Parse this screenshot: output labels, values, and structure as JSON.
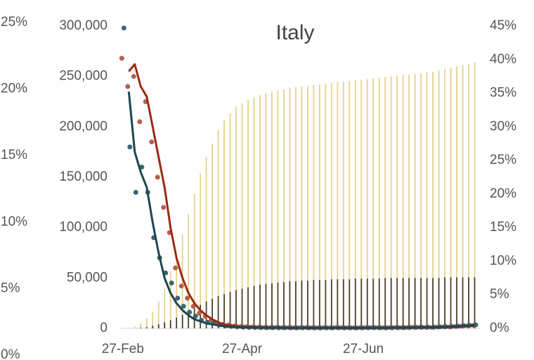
{
  "chart_data": {
    "type": "combo",
    "title": "Italy",
    "x": [
      0,
      3,
      6,
      9,
      12,
      15,
      18,
      21,
      24,
      27,
      30,
      33,
      36,
      39,
      42,
      45,
      48,
      51,
      54,
      57,
      60,
      63,
      66,
      69,
      72,
      75,
      78,
      81,
      84,
      87,
      90,
      93,
      96,
      99,
      102,
      105,
      108,
      111,
      114,
      117,
      120,
      123,
      126,
      129,
      132,
      135,
      138,
      141,
      144,
      147,
      150,
      153,
      156,
      159,
      162,
      165,
      168,
      171,
      174,
      177
    ],
    "xlim": [
      -1,
      180
    ],
    "xticks": [
      {
        "value": 0,
        "label": "27-Feb"
      },
      {
        "value": 60,
        "label": "27-Apr"
      },
      {
        "value": 121,
        "label": "27-Jun"
      }
    ],
    "ylim": [
      0,
      300000
    ],
    "yticks": [
      0,
      {
        "value": 50000,
        "label": "50,000"
      },
      {
        "value": 100000,
        "label": "100,000"
      },
      {
        "value": 150000,
        "label": "150,000"
      },
      {
        "value": 200000,
        "label": "200,000"
      },
      {
        "value": 250000,
        "label": "250,000"
      },
      {
        "value": 300000,
        "label": "300,000"
      }
    ],
    "y2lim": [
      0,
      45
    ],
    "y2ticks": [
      {
        "value": 0,
        "label": "0%"
      },
      {
        "value": 5,
        "label": "5%"
      },
      {
        "value": 10,
        "label": "10%"
      },
      {
        "value": 15,
        "label": "15%"
      },
      {
        "value": 20,
        "label": "20%"
      },
      {
        "value": 25,
        "label": "25%"
      },
      {
        "value": 30,
        "label": "30%"
      },
      {
        "value": 35,
        "label": "35%"
      },
      {
        "value": 40,
        "label": "40%"
      },
      {
        "value": 45,
        "label": "45%"
      }
    ],
    "y3lim": [
      0,
      25
    ],
    "y3ticks": [
      {
        "value": 0,
        "label": "0%"
      },
      {
        "value": 5,
        "label": "5%"
      },
      {
        "value": 10,
        "label": "10%"
      },
      {
        "value": 15,
        "label": "15%"
      },
      {
        "value": 20,
        "label": "20%"
      },
      {
        "value": 25,
        "label": "25%"
      }
    ],
    "series": [
      {
        "kind": "bar",
        "axis": "y2",
        "color": "#e6d28a",
        "values": [
          0,
          0.1,
          0.3,
          0.8,
          1.5,
          2.5,
          4,
          6,
          8.5,
          11,
          14,
          17,
          20,
          23,
          25.5,
          27.5,
          29.5,
          31,
          32,
          33,
          33.5,
          34,
          34.4,
          34.7,
          35,
          35.2,
          35.4,
          35.6,
          35.8,
          35.9,
          36,
          36.1,
          36.2,
          36.3,
          36.4,
          36.5,
          36.6,
          36.7,
          36.8,
          36.9,
          37,
          37.1,
          37.2,
          37.3,
          37.4,
          37.5,
          37.6,
          37.7,
          37.8,
          37.9,
          38,
          38.1,
          38.2,
          38.4,
          38.6,
          38.8,
          39,
          39.2,
          39.4,
          39.6
        ]
      },
      {
        "kind": "bar",
        "axis": "y2",
        "color": "#4a4330",
        "values": [
          0,
          0,
          0,
          0.1,
          0.2,
          0.4,
          0.6,
          0.9,
          1.2,
          1.6,
          2,
          2.5,
          3,
          3.5,
          4,
          4.4,
          4.8,
          5.1,
          5.4,
          5.7,
          5.9,
          6.1,
          6.3,
          6.5,
          6.6,
          6.7,
          6.8,
          6.9,
          7,
          7,
          7.1,
          7.1,
          7.2,
          7.2,
          7.2,
          7.3,
          7.3,
          7.3,
          7.3,
          7.4,
          7.4,
          7.4,
          7.4,
          7.4,
          7.5,
          7.5,
          7.5,
          7.5,
          7.5,
          7.5,
          7.5,
          7.5,
          7.5,
          7.5,
          7.6,
          7.6,
          7.6,
          7.6,
          7.6,
          7.6
        ]
      },
      {
        "kind": "scatter",
        "color": "#b5604f",
        "values": [
          268000,
          240000,
          250000,
          205000,
          225000,
          185000,
          150000,
          120000,
          95000,
          60000,
          42000,
          30000,
          22000,
          15000,
          12000,
          8000,
          5000,
          4000,
          3500,
          2500,
          2000,
          1800,
          1500,
          1200,
          1000,
          900,
          1100,
          800,
          900,
          700,
          800,
          900,
          700,
          600,
          800,
          700,
          900,
          800,
          700,
          600,
          800,
          900,
          1000,
          800,
          700,
          900,
          1000,
          800,
          900,
          1100,
          1200,
          1000,
          900,
          1300,
          1500,
          1400,
          1800,
          2200,
          2500,
          3000
        ]
      },
      {
        "kind": "scatter",
        "color": "#3e6670",
        "values": [
          298000,
          180000,
          135000,
          160000,
          135000,
          90000,
          70000,
          55000,
          45000,
          30000,
          22000,
          16000,
          12000,
          8000,
          6000,
          5000,
          3500,
          2500,
          2000,
          1500,
          1200,
          1000,
          900,
          800,
          700,
          700,
          600,
          600,
          500,
          500,
          600,
          500,
          500,
          400,
          500,
          500,
          600,
          500,
          500,
          400,
          500,
          600,
          700,
          600,
          500,
          600,
          700,
          800,
          900,
          1000,
          1100,
          1200,
          1300,
          1500,
          1700,
          1900,
          2200,
          2600,
          3000,
          3500
        ]
      },
      {
        "kind": "line",
        "color": "#9b2a12",
        "values": [
          null,
          255000,
          262000,
          240000,
          230000,
          200000,
          170000,
          140000,
          100000,
          70000,
          50000,
          35000,
          25000,
          18000,
          13000,
          9000,
          6000,
          4000,
          3000,
          2000,
          1500,
          1300,
          1100,
          1000,
          900,
          850,
          800,
          800,
          750,
          700,
          700,
          700,
          650,
          650,
          650,
          650,
          700,
          700,
          700,
          650,
          650,
          700,
          750,
          750,
          750,
          800,
          850,
          850,
          900,
          950,
          1000,
          1000,
          1050,
          1100,
          1200,
          1300,
          1500,
          1800,
          2200,
          2600
        ]
      },
      {
        "kind": "line",
        "color": "#1f4550",
        "values": [
          null,
          235000,
          175000,
          155000,
          140000,
          105000,
          75000,
          50000,
          35000,
          25000,
          18000,
          13000,
          9000,
          7000,
          5000,
          4000,
          3000,
          2000,
          1500,
          1200,
          1000,
          900,
          800,
          750,
          700,
          650,
          600,
          550,
          500,
          500,
          500,
          500,
          450,
          450,
          450,
          450,
          500,
          500,
          500,
          450,
          450,
          500,
          550,
          550,
          550,
          600,
          650,
          700,
          750,
          800,
          900,
          1000,
          1100,
          1200,
          1400,
          1600,
          1900,
          2300,
          2800,
          3300
        ]
      }
    ]
  }
}
